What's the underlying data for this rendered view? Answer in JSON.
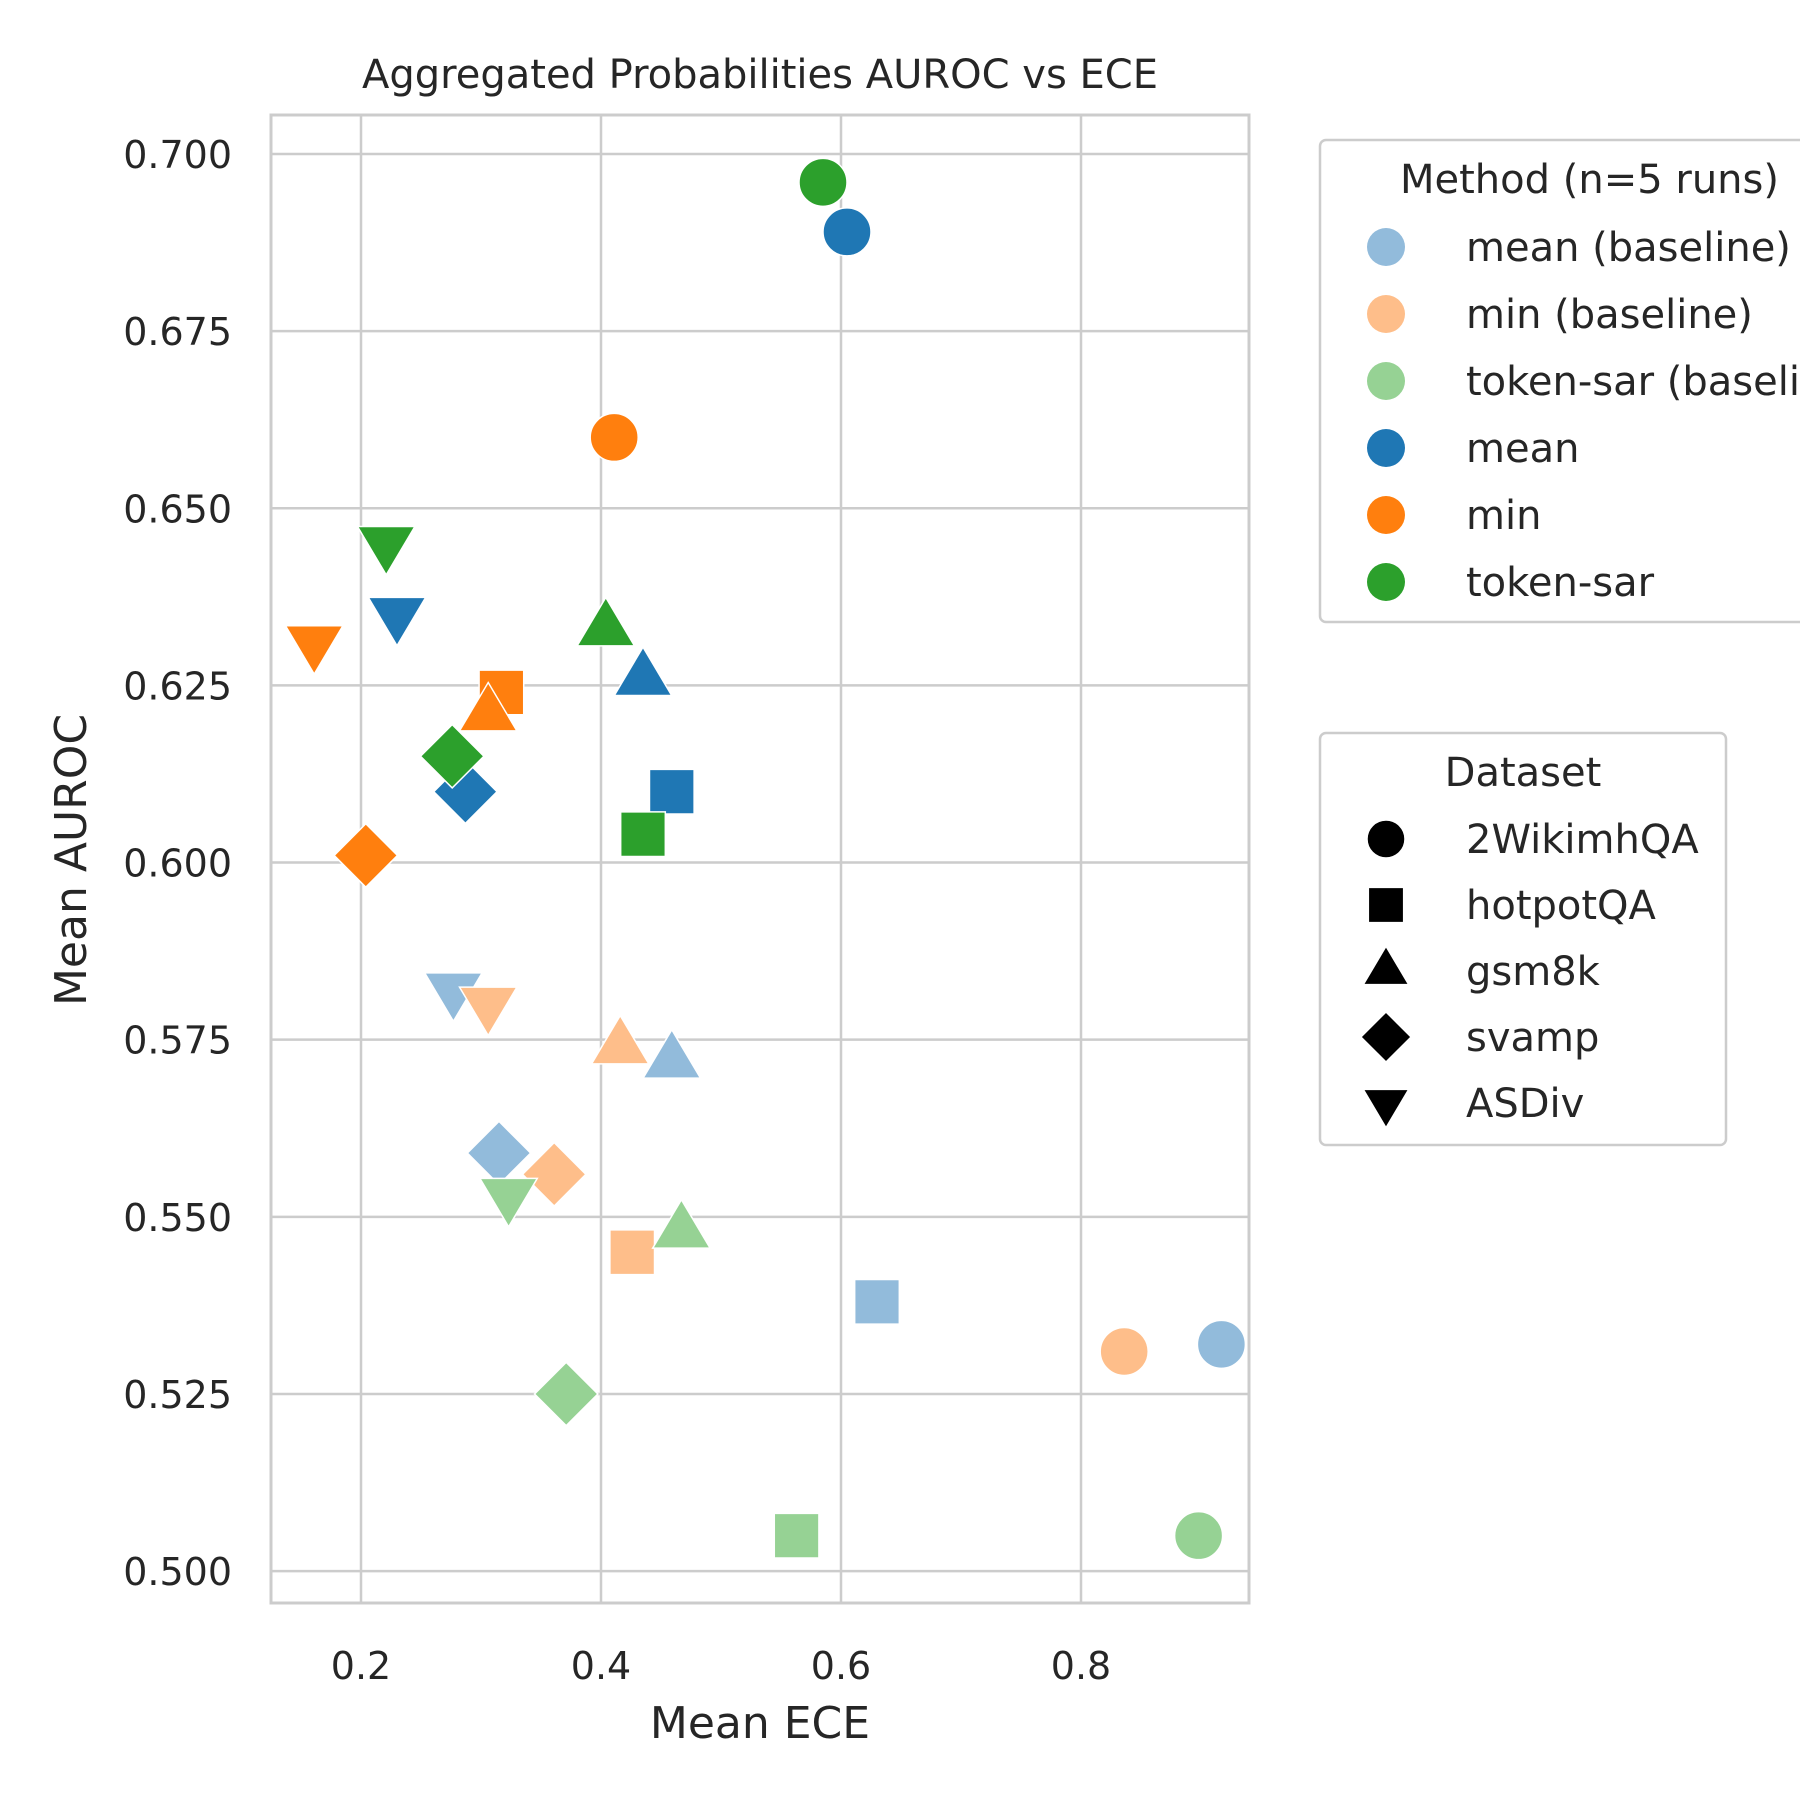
{
  "chart_data": {
    "type": "scatter",
    "title": "Aggregated Probabilities AUROC vs ECE",
    "xlabel": "Mean ECE",
    "ylabel": "Mean AUROC",
    "xlim": [
      0.125,
      0.94
    ],
    "ylim": [
      0.4955,
      0.7055
    ],
    "xticks": [
      {
        "value": 0.2,
        "label": "0.2"
      },
      {
        "value": 0.4,
        "label": "0.4"
      },
      {
        "value": 0.6,
        "label": "0.6"
      },
      {
        "value": 0.8,
        "label": "0.8"
      }
    ],
    "yticks": [
      {
        "value": 0.5,
        "label": "0.500"
      },
      {
        "value": 0.525,
        "label": "0.525"
      },
      {
        "value": 0.55,
        "label": "0.550"
      },
      {
        "value": 0.575,
        "label": "0.575"
      },
      {
        "value": 0.6,
        "label": "0.600"
      },
      {
        "value": 0.625,
        "label": "0.625"
      },
      {
        "value": 0.65,
        "label": "0.650"
      },
      {
        "value": 0.675,
        "label": "0.675"
      },
      {
        "value": 0.7,
        "label": "0.700"
      }
    ],
    "grid": true,
    "method_legend": {
      "title": "Method (n=5 runs)",
      "entries": [
        {
          "label": "mean (baseline)",
          "color": "#92bbdb"
        },
        {
          "label": "min (baseline)",
          "color": "#febe8a"
        },
        {
          "label": "token-sar (baseline)",
          "color": "#96d294"
        },
        {
          "label": "mean",
          "color": "#1f77b4"
        },
        {
          "label": "min",
          "color": "#ff7f0e"
        },
        {
          "label": "token-sar",
          "color": "#2ca02c"
        }
      ]
    },
    "dataset_legend": {
      "title": "Dataset",
      "entries": [
        {
          "label": "2WikimhQA",
          "marker": "circle"
        },
        {
          "label": "hotpotQA",
          "marker": "square"
        },
        {
          "label": "gsm8k",
          "marker": "triangle-up"
        },
        {
          "label": "svamp",
          "marker": "diamond"
        },
        {
          "label": "ASDiv",
          "marker": "triangle-down"
        }
      ]
    },
    "series": [
      {
        "method": "mean (baseline)",
        "points": [
          {
            "dataset": "2WikimhQA",
            "x": 0.917,
            "y": 0.532
          },
          {
            "dataset": "hotpotQA",
            "x": 0.63,
            "y": 0.538
          },
          {
            "dataset": "gsm8k",
            "x": 0.459,
            "y": 0.572
          },
          {
            "dataset": "svamp",
            "x": 0.315,
            "y": 0.559
          },
          {
            "dataset": "ASDiv",
            "x": 0.277,
            "y": 0.582
          }
        ]
      },
      {
        "method": "min (baseline)",
        "points": [
          {
            "dataset": "2WikimhQA",
            "x": 0.836,
            "y": 0.531
          },
          {
            "dataset": "hotpotQA",
            "x": 0.426,
            "y": 0.545
          },
          {
            "dataset": "gsm8k",
            "x": 0.416,
            "y": 0.574
          },
          {
            "dataset": "svamp",
            "x": 0.361,
            "y": 0.556
          },
          {
            "dataset": "ASDiv",
            "x": 0.306,
            "y": 0.58
          }
        ]
      },
      {
        "method": "token-sar (baseline)",
        "points": [
          {
            "dataset": "2WikimhQA",
            "x": 0.898,
            "y": 0.505
          },
          {
            "dataset": "hotpotQA",
            "x": 0.563,
            "y": 0.505
          },
          {
            "dataset": "gsm8k",
            "x": 0.467,
            "y": 0.548
          },
          {
            "dataset": "svamp",
            "x": 0.371,
            "y": 0.525
          },
          {
            "dataset": "ASDiv",
            "x": 0.323,
            "y": 0.553
          }
        ]
      },
      {
        "method": "mean",
        "points": [
          {
            "dataset": "2WikimhQA",
            "x": 0.605,
            "y": 0.689
          },
          {
            "dataset": "hotpotQA",
            "x": 0.459,
            "y": 0.61
          },
          {
            "dataset": "gsm8k",
            "x": 0.435,
            "y": 0.626
          },
          {
            "dataset": "svamp",
            "x": 0.287,
            "y": 0.61
          },
          {
            "dataset": "ASDiv",
            "x": 0.23,
            "y": 0.635
          }
        ]
      },
      {
        "method": "min",
        "points": [
          {
            "dataset": "2WikimhQA",
            "x": 0.411,
            "y": 0.66
          },
          {
            "dataset": "hotpotQA",
            "x": 0.317,
            "y": 0.624
          },
          {
            "dataset": "gsm8k",
            "x": 0.306,
            "y": 0.621
          },
          {
            "dataset": "svamp",
            "x": 0.204,
            "y": 0.601
          },
          {
            "dataset": "ASDiv",
            "x": 0.161,
            "y": 0.631
          }
        ]
      },
      {
        "method": "token-sar",
        "points": [
          {
            "dataset": "2WikimhQA",
            "x": 0.585,
            "y": 0.696
          },
          {
            "dataset": "hotpotQA",
            "x": 0.435,
            "y": 0.604
          },
          {
            "dataset": "gsm8k",
            "x": 0.404,
            "y": 0.633
          },
          {
            "dataset": "svamp",
            "x": 0.276,
            "y": 0.615
          },
          {
            "dataset": "ASDiv",
            "x": 0.221,
            "y": 0.645
          }
        ]
      }
    ]
  }
}
